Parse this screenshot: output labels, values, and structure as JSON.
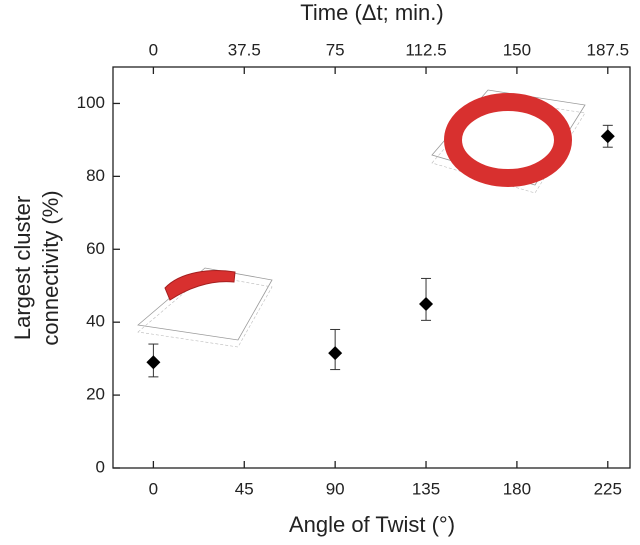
{
  "chart_data": {
    "type": "scatter",
    "xlabel": "Angle of Twist (°)",
    "x2label": "Time (Δt; min.)",
    "ylabel": [
      "Largest cluster",
      "connectivity (%)"
    ],
    "x": [
      0,
      90,
      135,
      225
    ],
    "values": [
      29,
      31.5,
      45,
      91
    ],
    "error_lower": [
      4,
      4.5,
      4.5,
      3
    ],
    "error_upper": [
      5,
      6.5,
      7,
      3
    ],
    "color": "#000000",
    "xlim": [
      -20,
      236
    ],
    "xticks": [
      0,
      45,
      90,
      135,
      180,
      225
    ],
    "x2lim": [
      -16.667,
      196.667
    ],
    "x2ticks": [
      0,
      37.5,
      75,
      112.5,
      150,
      187.5
    ],
    "ylim": [
      0,
      110
    ],
    "yticks": [
      0,
      20,
      40,
      60,
      80,
      100
    ],
    "grid": false
  }
}
